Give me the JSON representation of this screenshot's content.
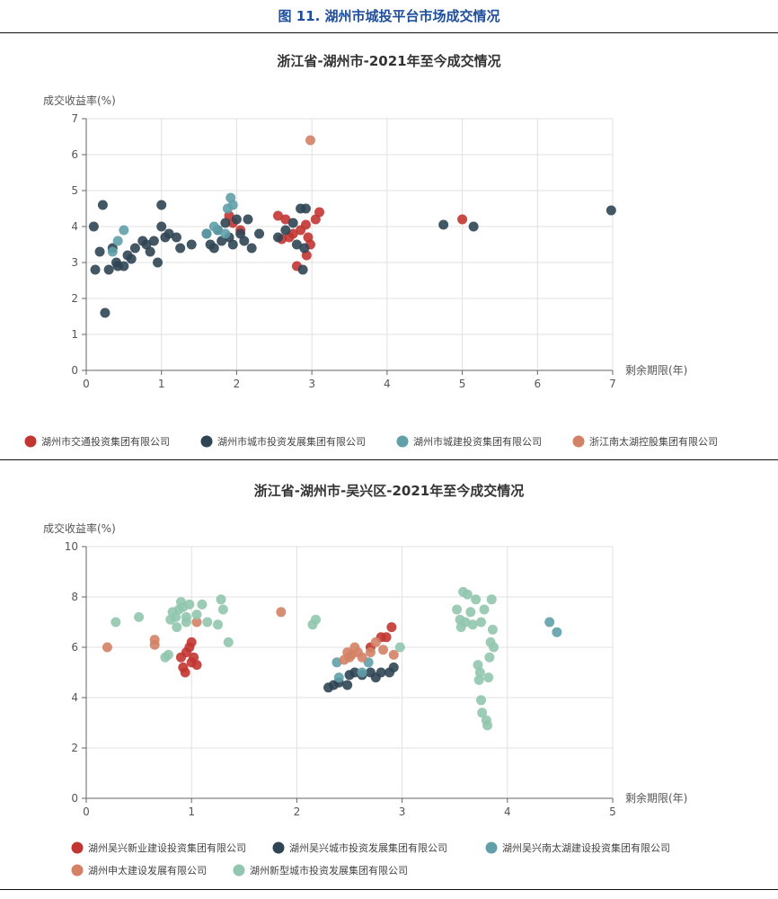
{
  "figure_title": "图 11. 湖州市城投平台市场成交情况",
  "chart_data": [
    {
      "type": "scatter",
      "title": "浙江省-湖州市-2021年至今成交情况",
      "xlabel": "剩余期限(年)",
      "ylabel": "成交收益率(%)",
      "xlim": [
        0,
        7
      ],
      "ylim": [
        0,
        7
      ],
      "xticks": [
        "0",
        "1",
        "2",
        "3",
        "4",
        "5",
        "6",
        "7"
      ],
      "yticks": [
        "0",
        "1",
        "2",
        "3",
        "4",
        "5",
        "6",
        "7"
      ],
      "grid": true,
      "legend_position": "bottom",
      "series": [
        {
          "name": "湖州市交通投资集团有限公司",
          "color": "#c23531",
          "points": [
            [
              1.9,
              4.3
            ],
            [
              1.95,
              4.1
            ],
            [
              2.05,
              3.9
            ],
            [
              2.55,
              4.3
            ],
            [
              2.65,
              4.2
            ],
            [
              2.7,
              3.7
            ],
            [
              2.6,
              3.65
            ],
            [
              2.75,
              3.8
            ],
            [
              2.85,
              3.9
            ],
            [
              2.92,
              4.05
            ],
            [
              2.98,
              3.5
            ],
            [
              3.05,
              4.2
            ],
            [
              3.1,
              4.4
            ],
            [
              2.8,
              2.9
            ],
            [
              2.93,
              3.2
            ],
            [
              2.95,
              3.7
            ],
            [
              5.0,
              4.2
            ]
          ]
        },
        {
          "name": "湖州市城市投资发展集团有限公司",
          "color": "#2f4554",
          "points": [
            [
              0.1,
              4.0
            ],
            [
              0.12,
              2.8
            ],
            [
              0.18,
              3.3
            ],
            [
              0.22,
              4.6
            ],
            [
              0.25,
              1.6
            ],
            [
              0.3,
              2.8
            ],
            [
              0.35,
              3.4
            ],
            [
              0.4,
              3.0
            ],
            [
              0.42,
              2.9
            ],
            [
              0.5,
              2.9
            ],
            [
              0.55,
              3.2
            ],
            [
              0.6,
              3.1
            ],
            [
              0.65,
              3.4
            ],
            [
              0.75,
              3.6
            ],
            [
              0.8,
              3.5
            ],
            [
              0.85,
              3.3
            ],
            [
              0.9,
              3.6
            ],
            [
              0.95,
              3.0
            ],
            [
              1.0,
              4.0
            ],
            [
              1.0,
              4.6
            ],
            [
              1.05,
              3.7
            ],
            [
              1.1,
              3.8
            ],
            [
              1.2,
              3.7
            ],
            [
              1.25,
              3.4
            ],
            [
              1.4,
              3.5
            ],
            [
              1.6,
              3.8
            ],
            [
              1.65,
              3.5
            ],
            [
              1.7,
              3.4
            ],
            [
              1.75,
              3.9
            ],
            [
              1.8,
              3.6
            ],
            [
              1.85,
              4.1
            ],
            [
              1.9,
              3.7
            ],
            [
              1.95,
              3.5
            ],
            [
              2.0,
              4.2
            ],
            [
              2.05,
              3.8
            ],
            [
              2.1,
              3.6
            ],
            [
              2.15,
              4.2
            ],
            [
              2.2,
              3.4
            ],
            [
              2.3,
              3.8
            ],
            [
              2.55,
              3.7
            ],
            [
              2.65,
              3.9
            ],
            [
              2.75,
              4.1
            ],
            [
              2.8,
              3.5
            ],
            [
              2.85,
              4.5
            ],
            [
              2.88,
              2.8
            ],
            [
              2.9,
              3.4
            ],
            [
              2.92,
              4.5
            ],
            [
              4.75,
              4.05
            ],
            [
              5.15,
              4.0
            ],
            [
              6.98,
              4.45
            ]
          ]
        },
        {
          "name": "湖州市城建投资集团有限公司",
          "color": "#61a0a8",
          "points": [
            [
              0.35,
              3.3
            ],
            [
              0.42,
              3.6
            ],
            [
              0.5,
              3.9
            ],
            [
              1.6,
              3.8
            ],
            [
              1.7,
              4.0
            ],
            [
              1.75,
              3.9
            ],
            [
              1.85,
              3.8
            ],
            [
              1.88,
              4.5
            ],
            [
              1.92,
              4.8
            ],
            [
              1.95,
              4.6
            ]
          ]
        },
        {
          "name": "浙江南太湖控股集团有限公司",
          "color": "#d48265",
          "points": [
            [
              2.98,
              6.4
            ]
          ]
        }
      ]
    },
    {
      "type": "scatter",
      "title": "浙江省-湖州市-吴兴区-2021年至今成交情况",
      "xlabel": "剩余期限(年)",
      "ylabel": "成交收益率(%)",
      "xlim": [
        0,
        5
      ],
      "ylim": [
        0,
        10
      ],
      "xticks": [
        "0",
        "1",
        "2",
        "3",
        "4",
        "5"
      ],
      "yticks": [
        "0",
        "2",
        "4",
        "6",
        "8",
        "10"
      ],
      "grid": true,
      "legend_position": "bottom",
      "series": [
        {
          "name": "湖州吴兴新业建设投资集团有限公司",
          "color": "#c23531",
          "points": [
            [
              0.9,
              5.6
            ],
            [
              0.92,
              5.2
            ],
            [
              0.94,
              5.0
            ],
            [
              0.95,
              5.8
            ],
            [
              0.98,
              6.0
            ],
            [
              1.0,
              5.4
            ],
            [
              1.02,
              5.6
            ],
            [
              1.05,
              5.3
            ],
            [
              1.0,
              6.2
            ],
            [
              2.7,
              6.0
            ],
            [
              2.8,
              6.4
            ],
            [
              2.85,
              6.4
            ],
            [
              2.9,
              6.8
            ]
          ]
        },
        {
          "name": "湖州吴兴城市投资发展集团有限公司",
          "color": "#2f4554",
          "points": [
            [
              2.3,
              4.4
            ],
            [
              2.35,
              4.5
            ],
            [
              2.4,
              4.6
            ],
            [
              2.48,
              4.5
            ],
            [
              2.5,
              4.9
            ],
            [
              2.55,
              5.0
            ],
            [
              2.62,
              4.9
            ],
            [
              2.7,
              5.0
            ],
            [
              2.75,
              4.8
            ],
            [
              2.8,
              5.0
            ],
            [
              2.88,
              5.0
            ],
            [
              2.92,
              5.2
            ]
          ]
        },
        {
          "name": "湖州吴兴南太湖建设投资集团有限公司",
          "color": "#61a0a8",
          "points": [
            [
              2.38,
              5.4
            ],
            [
              2.4,
              4.8
            ],
            [
              2.62,
              5.0
            ],
            [
              2.68,
              5.4
            ],
            [
              4.4,
              7.0
            ],
            [
              4.47,
              6.6
            ]
          ]
        },
        {
          "name": "湖州申太建设发展有限公司",
          "color": "#d48265",
          "points": [
            [
              0.2,
              6.0
            ],
            [
              0.65,
              6.1
            ],
            [
              0.65,
              6.3
            ],
            [
              1.05,
              7.0
            ],
            [
              1.85,
              7.4
            ],
            [
              2.45,
              5.5
            ],
            [
              2.48,
              5.8
            ],
            [
              2.5,
              5.6
            ],
            [
              2.52,
              5.7
            ],
            [
              2.55,
              6.0
            ],
            [
              2.58,
              5.8
            ],
            [
              2.62,
              5.6
            ],
            [
              2.7,
              5.8
            ],
            [
              2.75,
              6.2
            ],
            [
              2.82,
              5.9
            ],
            [
              2.92,
              5.7
            ]
          ]
        },
        {
          "name": "湖州新型城市投资发展集团有限公司",
          "color": "#91c7ae",
          "points": [
            [
              0.28,
              7.0
            ],
            [
              0.5,
              7.2
            ],
            [
              0.75,
              5.6
            ],
            [
              0.78,
              5.7
            ],
            [
              0.8,
              7.1
            ],
            [
              0.82,
              7.4
            ],
            [
              0.85,
              7.2
            ],
            [
              0.86,
              6.8
            ],
            [
              0.88,
              7.5
            ],
            [
              0.9,
              7.8
            ],
            [
              0.92,
              7.6
            ],
            [
              0.95,
              7.2
            ],
            [
              0.95,
              7.0
            ],
            [
              0.98,
              7.7
            ],
            [
              1.05,
              7.3
            ],
            [
              1.1,
              7.7
            ],
            [
              1.15,
              7.0
            ],
            [
              1.25,
              6.9
            ],
            [
              1.28,
              7.9
            ],
            [
              1.3,
              7.5
            ],
            [
              1.35,
              6.2
            ],
            [
              2.15,
              6.9
            ],
            [
              2.18,
              7.1
            ],
            [
              2.98,
              6.0
            ],
            [
              3.52,
              7.5
            ],
            [
              3.55,
              7.1
            ],
            [
              3.56,
              6.8
            ],
            [
              3.58,
              8.2
            ],
            [
              3.6,
              7.0
            ],
            [
              3.62,
              8.1
            ],
            [
              3.65,
              7.4
            ],
            [
              3.67,
              6.9
            ],
            [
              3.7,
              7.9
            ],
            [
              3.72,
              5.3
            ],
            [
              3.73,
              4.7
            ],
            [
              3.74,
              5.0
            ],
            [
              3.75,
              7.0
            ],
            [
              3.75,
              3.9
            ],
            [
              3.76,
              3.4
            ],
            [
              3.78,
              7.5
            ],
            [
              3.8,
              3.1
            ],
            [
              3.81,
              2.9
            ],
            [
              3.82,
              4.8
            ],
            [
              3.83,
              5.6
            ],
            [
              3.84,
              6.2
            ],
            [
              3.85,
              7.9
            ],
            [
              3.86,
              6.7
            ],
            [
              3.87,
              6.0
            ]
          ]
        }
      ]
    }
  ]
}
